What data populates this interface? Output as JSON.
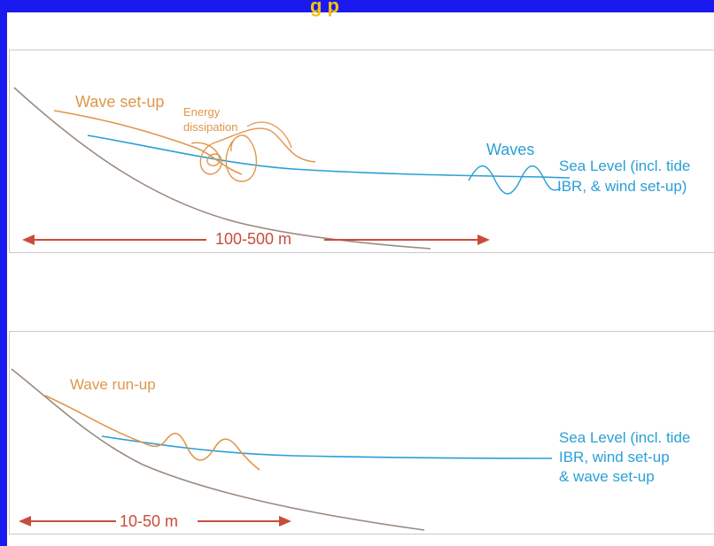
{
  "header": {
    "title_fragment": "g      p"
  },
  "top_panel": {
    "wave_setup_label": "Wave set-up",
    "energy_label_line1": "Energy",
    "energy_label_line2": "dissipation",
    "waves_label": "Waves",
    "sea_level_line1": "Sea Level (incl. tide",
    "sea_level_line2": "IBR, & wind set-up)",
    "distance_label": "100-500 m"
  },
  "bottom_panel": {
    "run_up_label": "Wave run-up",
    "sea_level_line1": "Sea Level (incl. tide",
    "sea_level_line2": "IBR, wind set-up",
    "sea_level_line3": "& wave set-up",
    "distance_label": "10-50 m"
  },
  "colors": {
    "orange": "#e0964a",
    "cyan": "#2a9fd6",
    "red": "#c94c3b",
    "ground": "#9a8a80",
    "frame_blue": "#1a1aee"
  }
}
